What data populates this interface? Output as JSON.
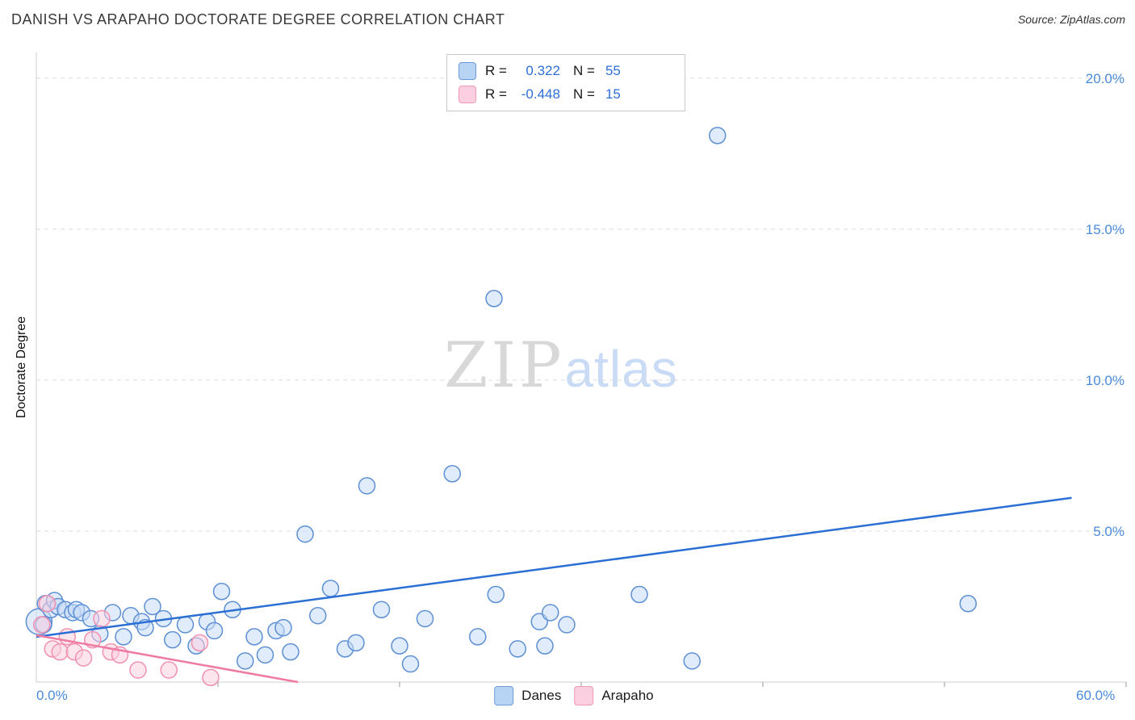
{
  "header": {
    "title": "DANISH VS ARAPAHO DOCTORATE DEGREE CORRELATION CHART",
    "source": "Source: ZipAtlas.com"
  },
  "axes": {
    "y_label": "Doctorate Degree",
    "x_min_label": "0.0%",
    "x_max_label": "60.0%"
  },
  "watermark": {
    "zip": "ZIP",
    "atlas": "atlas"
  },
  "legend_box": {
    "rows": [
      {
        "r_label": "R =",
        "r_value": "0.322",
        "n_label": "N =",
        "n_value": "55"
      },
      {
        "r_label": "R =",
        "r_value": "-0.448",
        "n_label": "N =",
        "n_value": "15"
      }
    ]
  },
  "bottom_legend": {
    "danes": "Danes",
    "arapaho": "Arapaho"
  },
  "colors": {
    "accent_blue": "#2f6fd8",
    "axis_tick_blue": "#4a8bd9",
    "danes_fill": "#c7dcf8",
    "danes_stroke": "#5d8fd4",
    "danes_trend": "#2b6fd4",
    "arapaho_fill": "#fccfe0",
    "arapaho_stroke": "#f191ae",
    "arapaho_trend": "#f07ba2"
  },
  "chart_data": {
    "type": "scatter",
    "title": "DANISH VS ARAPAHO DOCTORATE DEGREE CORRELATION CHART",
    "xlabel": "",
    "ylabel": "Doctorate Degree",
    "xlim": [
      0,
      60
    ],
    "ylim": [
      0,
      20.85
    ],
    "grid": "horizontal dashed",
    "legend_position": "top-center",
    "axis_label_color": "#4a8bd9",
    "x_ticks": [
      10,
      20,
      30,
      40,
      50,
      60
    ],
    "y_ticks": [
      {
        "v": 20,
        "label": "20.0%"
      },
      {
        "v": 15,
        "label": "15.0%"
      },
      {
        "v": 10,
        "label": "10.0%"
      },
      {
        "v": 5,
        "label": "5.0%"
      }
    ],
    "series": [
      {
        "name": "Danes",
        "r": 0.322,
        "n": 55,
        "fill": "#c7dcf8",
        "fill_opacity": 0.55,
        "stroke": "#5d8fd4",
        "trend_color": "#2b6fd4",
        "trend": {
          "x1": 0,
          "y1": 1.5,
          "x2": 57,
          "y2": 6.1
        },
        "points": [
          [
            0.15,
            2.0,
            16
          ],
          [
            0.4,
            1.9
          ],
          [
            0.5,
            2.6
          ],
          [
            0.8,
            2.4
          ],
          [
            1.0,
            2.7
          ],
          [
            1.2,
            2.5
          ],
          [
            1.6,
            2.4
          ],
          [
            2.0,
            2.3
          ],
          [
            2.2,
            2.4
          ],
          [
            2.5,
            2.3
          ],
          [
            3.0,
            2.1
          ],
          [
            3.5,
            1.6
          ],
          [
            4.2,
            2.3
          ],
          [
            4.8,
            1.5
          ],
          [
            5.2,
            2.2
          ],
          [
            5.8,
            2.0
          ],
          [
            6.0,
            1.8
          ],
          [
            6.4,
            2.5
          ],
          [
            7.0,
            2.1
          ],
          [
            7.5,
            1.4
          ],
          [
            8.2,
            1.9
          ],
          [
            8.8,
            1.2
          ],
          [
            9.4,
            2.0
          ],
          [
            9.8,
            1.7
          ],
          [
            10.2,
            3.0
          ],
          [
            10.8,
            2.4
          ],
          [
            11.5,
            0.7
          ],
          [
            12.0,
            1.5
          ],
          [
            12.6,
            0.9
          ],
          [
            13.2,
            1.7
          ],
          [
            13.6,
            1.8
          ],
          [
            14.0,
            1.0
          ],
          [
            14.8,
            4.9
          ],
          [
            15.5,
            2.2
          ],
          [
            16.2,
            3.1
          ],
          [
            17.0,
            1.1
          ],
          [
            17.6,
            1.3
          ],
          [
            18.2,
            6.5
          ],
          [
            19.0,
            2.4
          ],
          [
            20.0,
            1.2
          ],
          [
            20.6,
            0.6
          ],
          [
            21.4,
            2.1
          ],
          [
            22.9,
            6.9
          ],
          [
            24.3,
            1.5
          ],
          [
            25.2,
            12.7
          ],
          [
            25.3,
            2.9
          ],
          [
            26.5,
            1.1
          ],
          [
            27.7,
            2.0
          ],
          [
            28.0,
            1.2
          ],
          [
            28.3,
            2.3
          ],
          [
            29.2,
            1.9
          ],
          [
            33.2,
            2.9
          ],
          [
            36.1,
            0.7
          ],
          [
            37.5,
            18.1
          ],
          [
            51.3,
            2.6
          ]
        ]
      },
      {
        "name": "Arapaho",
        "r": -0.448,
        "n": 15,
        "fill": "#fccfe0",
        "fill_opacity": 0.55,
        "stroke": "#f191ae",
        "trend_color": "#f07ba2",
        "trend": {
          "x1": 0,
          "y1": 1.55,
          "x2": 14.4,
          "y2": 0
        },
        "points": [
          [
            0.3,
            1.9
          ],
          [
            0.6,
            2.6
          ],
          [
            0.9,
            1.1
          ],
          [
            1.3,
            1.0
          ],
          [
            1.7,
            1.5
          ],
          [
            2.1,
            1.0
          ],
          [
            2.6,
            0.8
          ],
          [
            3.1,
            1.4
          ],
          [
            3.6,
            2.1
          ],
          [
            4.1,
            1.0
          ],
          [
            4.6,
            0.9
          ],
          [
            5.6,
            0.4
          ],
          [
            7.3,
            0.4
          ],
          [
            9.0,
            1.3
          ],
          [
            9.6,
            0.15
          ]
        ]
      }
    ]
  }
}
